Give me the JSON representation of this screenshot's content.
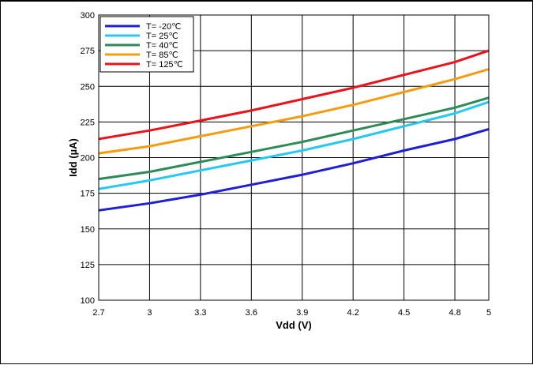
{
  "chart_data": {
    "type": "line",
    "title": "",
    "xlabel": "Vdd (V)",
    "ylabel": "Idd (µA)",
    "xlim": [
      2.7,
      5
    ],
    "ylim": [
      100,
      300
    ],
    "x_ticks": [
      "2.7",
      "3",
      "3.3",
      "3.6",
      "3.9",
      "4.2",
      "4.5",
      "4.8",
      "5"
    ],
    "y_ticks": [
      "100",
      "125",
      "150",
      "175",
      "200",
      "225",
      "250",
      "275",
      "300"
    ],
    "grid": true,
    "legend_position": "top-left",
    "x": [
      2.7,
      3.0,
      3.3,
      3.6,
      3.9,
      4.2,
      4.5,
      4.8,
      5.0
    ],
    "series": [
      {
        "name": "T= -20℃",
        "color": "#1f1fd6",
        "values": [
          163,
          168,
          174,
          181,
          188,
          196,
          205,
          213,
          220
        ]
      },
      {
        "name": "T= 25℃",
        "color": "#27c8f0",
        "values": [
          178,
          184,
          191,
          198,
          205,
          213,
          222,
          231,
          239
        ]
      },
      {
        "name": "T= 40℃",
        "color": "#2e8b57",
        "values": [
          185,
          190,
          197,
          204,
          211,
          219,
          227,
          235,
          242
        ]
      },
      {
        "name": "T= 85℃",
        "color": "#f39c12",
        "values": [
          203,
          208,
          215,
          222,
          229,
          237,
          246,
          255,
          262
        ]
      },
      {
        "name": "T= 125℃",
        "color": "#e8141c",
        "values": [
          213,
          219,
          226,
          233,
          241,
          249,
          258,
          267,
          275
        ]
      }
    ]
  }
}
